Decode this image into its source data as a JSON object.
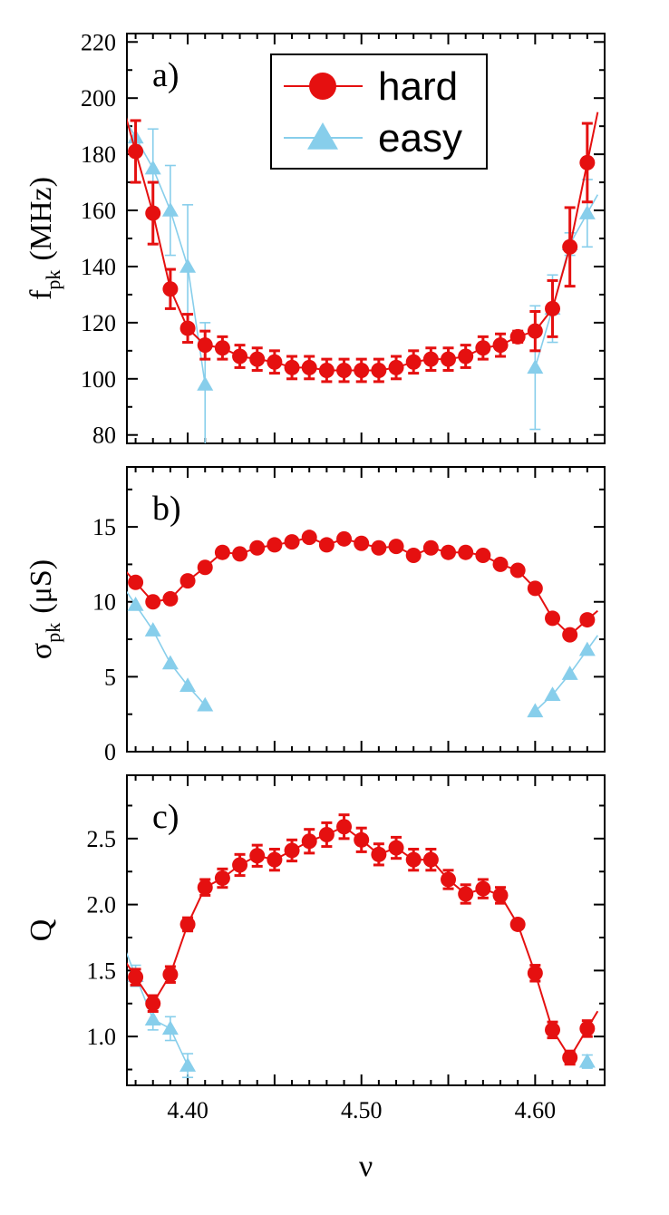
{
  "colors": {
    "hard": "#e51010",
    "easy": "#87ceeb",
    "axis": "#000000"
  },
  "chart_data": [
    {
      "type": "line",
      "panel_label": "a)",
      "xlabel": "",
      "ylabel": "f",
      "ylabel_sub": "pk",
      "ylabel_unit": "(MHz)",
      "xlim": [
        4.365,
        4.64
      ],
      "ylim": [
        77,
        223
      ],
      "yticks": [
        80,
        100,
        120,
        140,
        160,
        180,
        200,
        220
      ],
      "ytick_labels": [
        "80",
        "100",
        "120",
        "140",
        "160",
        "180",
        "200",
        "220"
      ],
      "legend": {
        "placement": "top-center",
        "entries": [
          "hard",
          "easy"
        ]
      },
      "series": [
        {
          "name": "hard",
          "marker": "circle",
          "x": [
            4.37,
            4.38,
            4.39,
            4.4,
            4.41,
            4.42,
            4.43,
            4.44,
            4.45,
            4.46,
            4.47,
            4.48,
            4.49,
            4.5,
            4.51,
            4.52,
            4.53,
            4.54,
            4.55,
            4.56,
            4.57,
            4.58,
            4.59,
            4.6,
            4.61,
            4.62,
            4.63
          ],
          "values": [
            181,
            159,
            132,
            118,
            112,
            111,
            108,
            107,
            106,
            104,
            104,
            103,
            103,
            103,
            103,
            104,
            106,
            107,
            107,
            108,
            111,
            112,
            115,
            117,
            125,
            147,
            177
          ],
          "errors": [
            11,
            11,
            7,
            5,
            5,
            4,
            4,
            4,
            4,
            4,
            4,
            4,
            4,
            4,
            4,
            4,
            4,
            4,
            4,
            4,
            4,
            4,
            2,
            7,
            10,
            14,
            14
          ]
        },
        {
          "name": "easy",
          "marker": "triangle",
          "x": [
            4.37,
            4.38,
            4.39,
            4.4,
            4.41,
            4.6,
            4.61,
            4.62,
            4.63
          ],
          "values": [
            186,
            175,
            160,
            140,
            98,
            104,
            125,
            148,
            159
          ],
          "errors": [
            6,
            14,
            16,
            22,
            22,
            22,
            12,
            4,
            12
          ]
        }
      ]
    },
    {
      "type": "line",
      "panel_label": "b)",
      "xlabel": "",
      "ylabel": "σ",
      "ylabel_sub": "pk",
      "ylabel_unit": "(μS)",
      "xlim": [
        4.365,
        4.64
      ],
      "ylim": [
        0,
        19
      ],
      "yticks": [
        0,
        5,
        10,
        15
      ],
      "ytick_labels": [
        "0",
        "5",
        "10",
        "15"
      ],
      "series": [
        {
          "name": "hard",
          "marker": "circle",
          "x": [
            4.37,
            4.38,
            4.39,
            4.4,
            4.41,
            4.42,
            4.43,
            4.44,
            4.45,
            4.46,
            4.47,
            4.48,
            4.49,
            4.5,
            4.51,
            4.52,
            4.53,
            4.54,
            4.55,
            4.56,
            4.57,
            4.58,
            4.59,
            4.6,
            4.61,
            4.62,
            4.63
          ],
          "values": [
            11.3,
            10.0,
            10.2,
            11.4,
            12.3,
            13.3,
            13.2,
            13.6,
            13.8,
            14.0,
            14.3,
            13.8,
            14.2,
            13.9,
            13.6,
            13.7,
            13.1,
            13.6,
            13.3,
            13.3,
            13.1,
            12.5,
            12.1,
            10.9,
            8.9,
            7.8,
            8.8
          ],
          "errors": []
        },
        {
          "name": "easy",
          "marker": "triangle",
          "x": [
            4.37,
            4.38,
            4.39,
            4.4,
            4.41,
            4.6,
            4.61,
            4.62,
            4.63
          ],
          "values": [
            9.8,
            8.1,
            5.9,
            4.4,
            3.1,
            2.7,
            3.8,
            5.2,
            6.8
          ],
          "errors": []
        }
      ]
    },
    {
      "type": "line",
      "panel_label": "c)",
      "xlabel": "ν",
      "ylabel": "Q",
      "ylabel_sub": "",
      "ylabel_unit": "",
      "xlim": [
        4.365,
        4.64
      ],
      "ylim": [
        0.63,
        2.98
      ],
      "yticks": [
        1.0,
        1.5,
        2.0,
        2.5
      ],
      "ytick_labels": [
        "1.0",
        "1.5",
        "2.0",
        "2.5"
      ],
      "xticks": [
        4.4,
        4.5,
        4.6
      ],
      "xtick_labels": [
        "4.40",
        "4.50",
        "4.60"
      ],
      "series": [
        {
          "name": "hard",
          "marker": "circle",
          "x": [
            4.37,
            4.38,
            4.39,
            4.4,
            4.41,
            4.42,
            4.43,
            4.44,
            4.45,
            4.46,
            4.47,
            4.48,
            4.49,
            4.5,
            4.51,
            4.52,
            4.53,
            4.54,
            4.55,
            4.56,
            4.57,
            4.58,
            4.59,
            4.6,
            4.61,
            4.62,
            4.63
          ],
          "values": [
            1.45,
            1.25,
            1.47,
            1.85,
            2.13,
            2.2,
            2.3,
            2.37,
            2.34,
            2.41,
            2.48,
            2.53,
            2.59,
            2.49,
            2.38,
            2.43,
            2.34,
            2.34,
            2.19,
            2.08,
            2.12,
            2.07,
            1.85,
            1.48,
            1.05,
            0.84,
            1.06
          ],
          "errors": [
            0.06,
            0.06,
            0.06,
            0.05,
            0.06,
            0.07,
            0.08,
            0.08,
            0.08,
            0.08,
            0.09,
            0.09,
            0.09,
            0.09,
            0.08,
            0.08,
            0.08,
            0.08,
            0.07,
            0.07,
            0.07,
            0.06,
            0.02,
            0.06,
            0.06,
            0.05,
            0.06
          ]
        },
        {
          "name": "easy",
          "marker": "triangle",
          "x": [
            4.37,
            4.38,
            4.39,
            4.4,
            4.63
          ],
          "values": [
            1.46,
            1.13,
            1.06,
            0.78,
            0.81
          ],
          "errors": [
            0.08,
            0.08,
            0.09,
            0.09,
            0.05
          ]
        }
      ]
    }
  ]
}
